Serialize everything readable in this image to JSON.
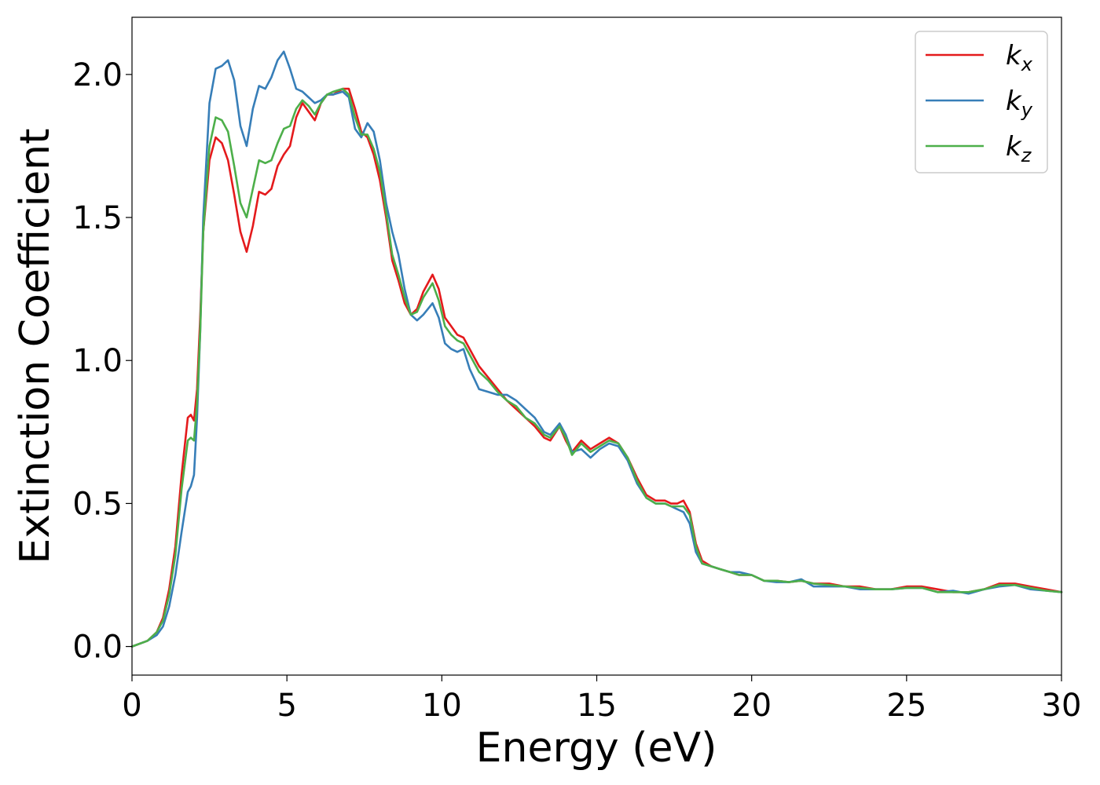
{
  "chart_data": {
    "type": "line",
    "xlabel": "Energy (eV)",
    "ylabel": "Extinction Coefficient",
    "xlim": [
      0,
      30
    ],
    "ylim": [
      -0.1,
      2.2
    ],
    "xticks": [
      0,
      5,
      10,
      15,
      20,
      25,
      30
    ],
    "xtick_labels": [
      "0",
      "5",
      "10",
      "15",
      "20",
      "25",
      "30"
    ],
    "yticks": [
      0.0,
      0.5,
      1.0,
      1.5,
      2.0
    ],
    "ytick_labels": [
      "0.0",
      "0.5",
      "1.0",
      "1.5",
      "2.0"
    ],
    "grid": false,
    "legend_position": "top-right",
    "series": [
      {
        "name": "k_x",
        "label_main": "k",
        "label_sub": "x",
        "color": "#e41a1c",
        "x": [
          0,
          0.5,
          0.8,
          1.0,
          1.2,
          1.4,
          1.6,
          1.8,
          1.9,
          2.0,
          2.1,
          2.2,
          2.3,
          2.5,
          2.7,
          2.9,
          3.1,
          3.3,
          3.5,
          3.7,
          3.9,
          4.1,
          4.3,
          4.5,
          4.7,
          4.9,
          5.1,
          5.3,
          5.5,
          5.7,
          5.9,
          6.1,
          6.3,
          6.5,
          6.8,
          7.0,
          7.2,
          7.4,
          7.6,
          7.8,
          8.0,
          8.2,
          8.4,
          8.6,
          8.8,
          9.0,
          9.2,
          9.4,
          9.7,
          9.9,
          10.1,
          10.3,
          10.5,
          10.7,
          10.9,
          11.2,
          11.5,
          11.8,
          12.1,
          12.4,
          12.7,
          13.0,
          13.3,
          13.5,
          13.8,
          14.0,
          14.2,
          14.5,
          14.8,
          15.1,
          15.4,
          15.7,
          16.0,
          16.3,
          16.6,
          16.9,
          17.2,
          17.4,
          17.6,
          17.8,
          18.0,
          18.2,
          18.4,
          18.7,
          19.0,
          19.3,
          19.6,
          20.0,
          20.4,
          20.8,
          21.2,
          21.6,
          22.0,
          22.5,
          23.0,
          23.5,
          24.0,
          24.5,
          25.0,
          25.5,
          26.0,
          26.5,
          27.0,
          27.5,
          28.0,
          28.5,
          29.0,
          29.5,
          30.0
        ],
        "y": [
          0.0,
          0.02,
          0.05,
          0.1,
          0.2,
          0.35,
          0.6,
          0.8,
          0.81,
          0.79,
          0.9,
          1.15,
          1.45,
          1.7,
          1.78,
          1.76,
          1.7,
          1.58,
          1.45,
          1.38,
          1.47,
          1.59,
          1.58,
          1.6,
          1.68,
          1.72,
          1.75,
          1.85,
          1.9,
          1.87,
          1.84,
          1.9,
          1.93,
          1.93,
          1.95,
          1.95,
          1.88,
          1.8,
          1.78,
          1.72,
          1.63,
          1.5,
          1.35,
          1.28,
          1.2,
          1.16,
          1.18,
          1.24,
          1.3,
          1.25,
          1.15,
          1.12,
          1.09,
          1.08,
          1.04,
          0.98,
          0.94,
          0.9,
          0.86,
          0.83,
          0.8,
          0.77,
          0.73,
          0.72,
          0.77,
          0.72,
          0.68,
          0.72,
          0.69,
          0.71,
          0.73,
          0.71,
          0.66,
          0.59,
          0.53,
          0.51,
          0.51,
          0.5,
          0.5,
          0.51,
          0.47,
          0.36,
          0.3,
          0.28,
          0.27,
          0.26,
          0.25,
          0.25,
          0.23,
          0.23,
          0.225,
          0.23,
          0.22,
          0.22,
          0.21,
          0.21,
          0.2,
          0.2,
          0.21,
          0.21,
          0.2,
          0.19,
          0.19,
          0.2,
          0.22,
          0.22,
          0.21,
          0.2,
          0.19
        ]
      },
      {
        "name": "k_y",
        "label_main": "k",
        "label_sub": "y",
        "color": "#377eb8",
        "x": [
          0,
          0.5,
          0.8,
          1.0,
          1.2,
          1.4,
          1.6,
          1.8,
          1.9,
          2.0,
          2.1,
          2.2,
          2.3,
          2.5,
          2.7,
          2.9,
          3.1,
          3.3,
          3.5,
          3.7,
          3.9,
          4.1,
          4.3,
          4.5,
          4.7,
          4.9,
          5.1,
          5.3,
          5.5,
          5.7,
          5.9,
          6.1,
          6.3,
          6.5,
          6.8,
          7.0,
          7.2,
          7.4,
          7.6,
          7.8,
          8.0,
          8.2,
          8.4,
          8.6,
          8.8,
          9.0,
          9.2,
          9.4,
          9.7,
          9.9,
          10.1,
          10.3,
          10.5,
          10.7,
          10.9,
          11.2,
          11.5,
          11.8,
          12.1,
          12.4,
          12.7,
          13.0,
          13.3,
          13.5,
          13.8,
          14.0,
          14.2,
          14.5,
          14.8,
          15.1,
          15.4,
          15.7,
          16.0,
          16.3,
          16.6,
          16.9,
          17.2,
          17.4,
          17.6,
          17.8,
          18.0,
          18.2,
          18.4,
          18.7,
          19.0,
          19.3,
          19.6,
          20.0,
          20.4,
          20.8,
          21.2,
          21.6,
          22.0,
          22.5,
          23.0,
          23.5,
          24.0,
          24.5,
          25.0,
          25.5,
          26.0,
          26.5,
          27.0,
          27.5,
          28.0,
          28.5,
          29.0,
          29.5,
          30.0
        ],
        "y": [
          0.0,
          0.02,
          0.04,
          0.07,
          0.14,
          0.25,
          0.4,
          0.54,
          0.56,
          0.6,
          0.8,
          1.1,
          1.5,
          1.9,
          2.02,
          2.03,
          2.05,
          1.98,
          1.82,
          1.75,
          1.88,
          1.96,
          1.95,
          1.99,
          2.05,
          2.08,
          2.02,
          1.95,
          1.94,
          1.92,
          1.9,
          1.91,
          1.93,
          1.93,
          1.94,
          1.92,
          1.81,
          1.78,
          1.83,
          1.8,
          1.7,
          1.55,
          1.45,
          1.37,
          1.25,
          1.16,
          1.14,
          1.16,
          1.2,
          1.15,
          1.06,
          1.04,
          1.03,
          1.04,
          0.97,
          0.9,
          0.89,
          0.88,
          0.88,
          0.86,
          0.83,
          0.8,
          0.75,
          0.74,
          0.78,
          0.74,
          0.68,
          0.69,
          0.66,
          0.69,
          0.71,
          0.7,
          0.65,
          0.57,
          0.52,
          0.5,
          0.5,
          0.49,
          0.48,
          0.47,
          0.43,
          0.33,
          0.29,
          0.28,
          0.27,
          0.26,
          0.26,
          0.25,
          0.23,
          0.225,
          0.225,
          0.235,
          0.21,
          0.21,
          0.21,
          0.2,
          0.2,
          0.2,
          0.205,
          0.205,
          0.19,
          0.195,
          0.185,
          0.2,
          0.21,
          0.215,
          0.2,
          0.195,
          0.19
        ]
      },
      {
        "name": "k_z",
        "label_main": "k",
        "label_sub": "z",
        "color": "#4daf4a",
        "x": [
          0,
          0.5,
          0.8,
          1.0,
          1.2,
          1.4,
          1.6,
          1.8,
          1.9,
          2.0,
          2.1,
          2.2,
          2.3,
          2.5,
          2.7,
          2.9,
          3.1,
          3.3,
          3.5,
          3.7,
          3.9,
          4.1,
          4.3,
          4.5,
          4.7,
          4.9,
          5.1,
          5.3,
          5.5,
          5.7,
          5.9,
          6.1,
          6.3,
          6.5,
          6.8,
          7.0,
          7.2,
          7.4,
          7.6,
          7.8,
          8.0,
          8.2,
          8.4,
          8.6,
          8.8,
          9.0,
          9.2,
          9.4,
          9.7,
          9.9,
          10.1,
          10.3,
          10.5,
          10.7,
          10.9,
          11.2,
          11.5,
          11.8,
          12.1,
          12.4,
          12.7,
          13.0,
          13.3,
          13.5,
          13.8,
          14.0,
          14.2,
          14.5,
          14.8,
          15.1,
          15.4,
          15.7,
          16.0,
          16.3,
          16.6,
          16.9,
          17.2,
          17.4,
          17.6,
          17.8,
          18.0,
          18.2,
          18.4,
          18.7,
          19.0,
          19.3,
          19.6,
          20.0,
          20.4,
          20.8,
          21.2,
          21.6,
          22.0,
          22.5,
          23.0,
          23.5,
          24.0,
          24.5,
          25.0,
          25.5,
          26.0,
          26.5,
          27.0,
          27.5,
          28.0,
          28.5,
          29.0,
          29.5,
          30.0
        ],
        "y": [
          0.0,
          0.02,
          0.05,
          0.09,
          0.18,
          0.32,
          0.55,
          0.72,
          0.73,
          0.72,
          0.85,
          1.1,
          1.45,
          1.75,
          1.85,
          1.84,
          1.8,
          1.68,
          1.55,
          1.5,
          1.6,
          1.7,
          1.69,
          1.7,
          1.76,
          1.81,
          1.82,
          1.88,
          1.91,
          1.89,
          1.86,
          1.9,
          1.93,
          1.94,
          1.95,
          1.93,
          1.85,
          1.79,
          1.79,
          1.74,
          1.66,
          1.52,
          1.37,
          1.3,
          1.22,
          1.16,
          1.17,
          1.22,
          1.27,
          1.21,
          1.12,
          1.09,
          1.07,
          1.06,
          1.02,
          0.96,
          0.93,
          0.89,
          0.86,
          0.84,
          0.8,
          0.78,
          0.74,
          0.73,
          0.77,
          0.73,
          0.67,
          0.71,
          0.68,
          0.7,
          0.72,
          0.71,
          0.66,
          0.58,
          0.52,
          0.5,
          0.5,
          0.49,
          0.49,
          0.49,
          0.46,
          0.35,
          0.29,
          0.28,
          0.27,
          0.26,
          0.25,
          0.25,
          0.23,
          0.23,
          0.225,
          0.23,
          0.22,
          0.215,
          0.21,
          0.205,
          0.2,
          0.2,
          0.205,
          0.205,
          0.19,
          0.19,
          0.19,
          0.2,
          0.215,
          0.215,
          0.205,
          0.195,
          0.19
        ]
      }
    ]
  }
}
